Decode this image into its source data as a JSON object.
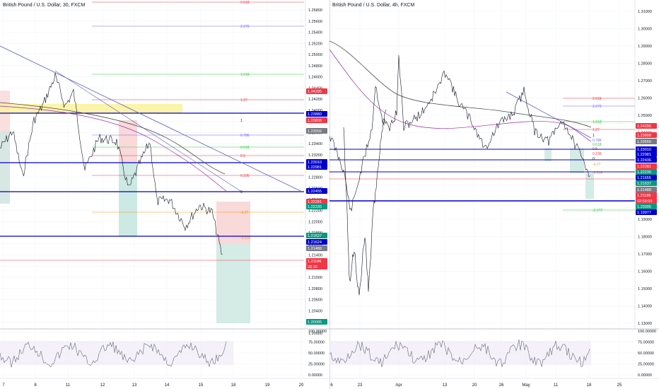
{
  "left_chart": {
    "header": "British Pound / U.S. Dollar, 30, FXCM",
    "price_ticks": [
      "1.25800",
      "1.25600",
      "1.25400",
      "1.25200",
      "1.25000",
      "1.24800",
      "1.24600",
      "1.24400",
      "1.24200",
      "1.24000",
      "1.23800",
      "1.23600",
      "1.23400",
      "1.23200",
      "1.23000",
      "1.22800",
      "1.22600",
      "1.22400",
      "1.22200",
      "1.22000",
      "1.21800",
      "1.21600",
      "1.21400",
      "1.21200",
      "1.21000",
      "1.20800",
      "1.20600",
      "1.20400",
      "1.20200",
      "1.20000"
    ],
    "fib_labels": [
      "2.618",
      "2.272",
      "1.618",
      "1.27",
      "1",
      "0.786",
      "0.618",
      "0.5",
      "0.236",
      "0",
      "-0.27",
      "-0.618"
    ],
    "price_tags": [
      {
        "text": "1.24295",
        "color": "#f23645"
      },
      {
        "text": "1.23880",
        "color": "#0000cc"
      },
      {
        "text": "1.23808",
        "color": "#f23645"
      },
      {
        "text": "1.23556",
        "color": "#787b86"
      },
      {
        "text": "1.23010",
        "color": "#0000cc"
      },
      {
        "text": "1.22981",
        "color": "#0000cc"
      },
      {
        "text": "1.22455",
        "color": "#0000cc"
      },
      {
        "text": "1.22281",
        "color": "#f23645"
      },
      {
        "text": "1.22235",
        "color": "#089981"
      },
      {
        "text": "1.21637",
        "color": "#089981"
      },
      {
        "text": "1.21624",
        "color": "#0000cc"
      },
      {
        "text": "1.21488",
        "color": "#787b86"
      },
      {
        "text": "1.21186",
        "color": "#f23645"
      },
      {
        "text": "28:10",
        "color": "#f23645"
      },
      {
        "text": "1.20095",
        "color": "#089981"
      }
    ],
    "osc_ticks": [
      "100.00000",
      "75.00000",
      "50.00000",
      "25.00000",
      "0.00000"
    ],
    "date_ticks": [
      "7",
      "8",
      "11",
      "12",
      "13",
      "14",
      "15",
      "18",
      "19",
      "20"
    ]
  },
  "right_chart": {
    "header": "British Pound / U.S. Dollar, 4h, FXCM",
    "price_ticks": [
      "1.31000",
      "1.30000",
      "1.29000",
      "1.28000",
      "1.27000",
      "1.26000",
      "1.25000",
      "1.24000",
      "1.23000",
      "1.22000",
      "1.21000",
      "1.20000",
      "1.19000",
      "1.18000",
      "1.17000",
      "1.16000",
      "1.15000",
      "1.14000",
      "1.13000"
    ],
    "fib_labels": [
      "2.618",
      "2.272",
      "1.618",
      "1.27",
      "1",
      "0.786",
      "0.618",
      "0.5",
      "0.236",
      "0",
      "-0.27",
      "-0.618",
      "-2.272"
    ],
    "price_tags": [
      {
        "text": "1.24295",
        "color": "#f23645"
      },
      {
        "text": "1.23808",
        "color": "#f23645"
      },
      {
        "text": "1.23556",
        "color": "#787b86"
      },
      {
        "text": "1.23010",
        "color": "#0000cc"
      },
      {
        "text": "1.22981",
        "color": "#0000cc"
      },
      {
        "text": "1.22436",
        "color": "#0000cc"
      },
      {
        "text": "1.22281",
        "color": "#f23645"
      },
      {
        "text": "1.22235",
        "color": "#089981"
      },
      {
        "text": "1.21655",
        "color": "#0000cc"
      },
      {
        "text": "1.21637",
        "color": "#089981"
      },
      {
        "text": "1.21488",
        "color": "#787b86"
      },
      {
        "text": "1.21186",
        "color": "#f23645"
      },
      {
        "text": "02:58:09",
        "color": "#f23645"
      },
      {
        "text": "1.20095",
        "color": "#089981"
      },
      {
        "text": "1.19977",
        "color": "#0000cc"
      }
    ],
    "osc_ticks": [
      "100.00000",
      "75.00000",
      "50.00000",
      "25.00000",
      "0.00000"
    ],
    "date_ticks": [
      "6",
      "23",
      "Apr",
      "13",
      "20",
      "26",
      "May",
      "11",
      "18",
      "25"
    ]
  }
}
